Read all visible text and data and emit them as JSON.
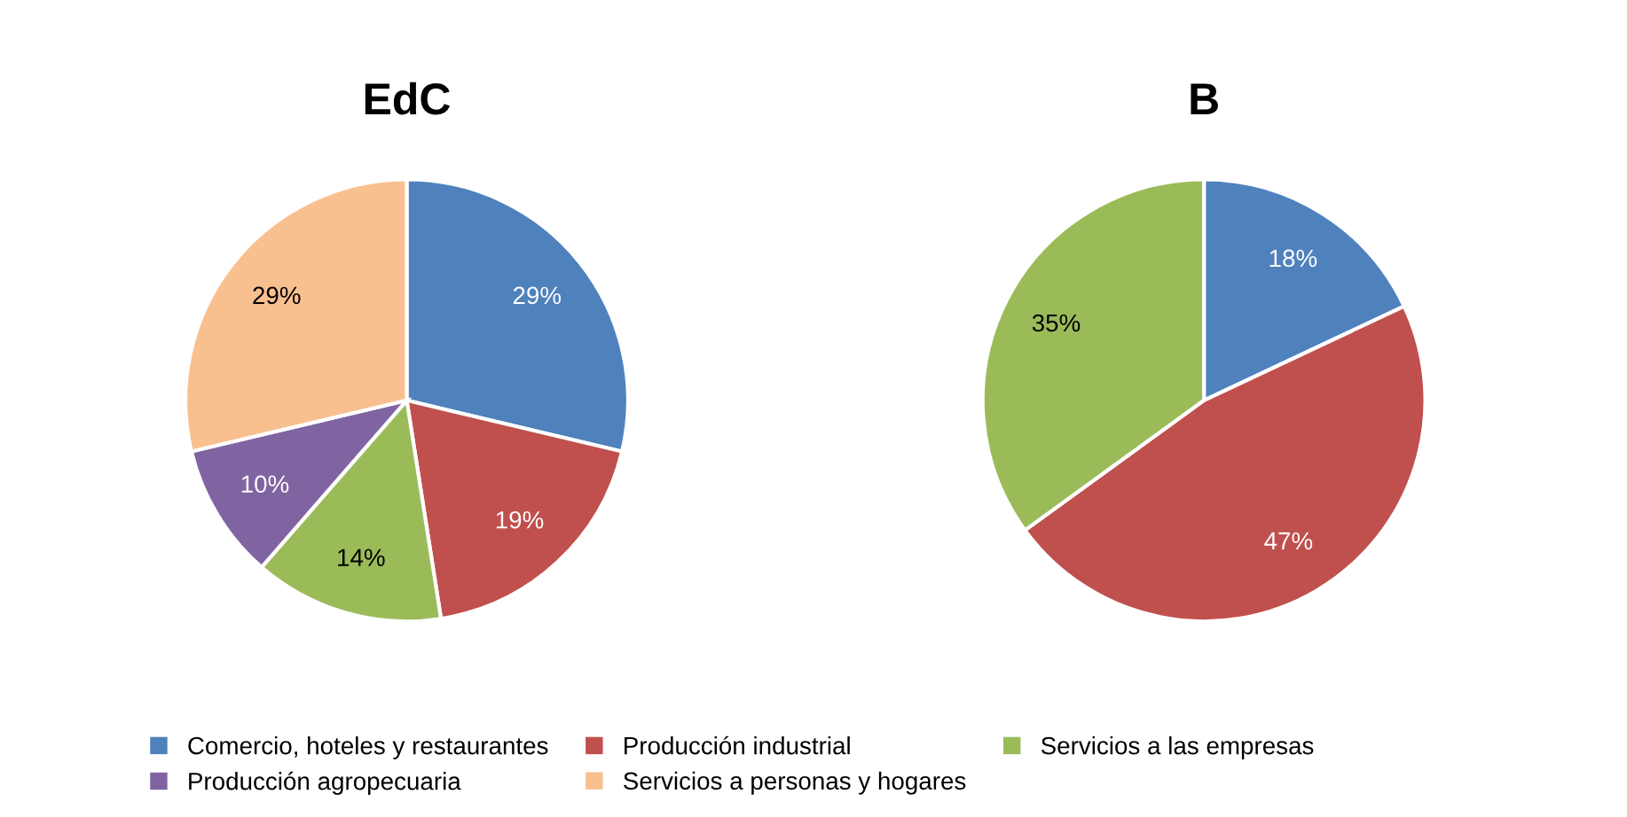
{
  "chart_data": [
    {
      "type": "pie",
      "title": "EdC",
      "categories": [
        "Comercio, hoteles y restaurantes",
        "Producción industrial",
        "Servicios a las empresas",
        "Producción agropecuaria",
        "Servicios a personas y hogares"
      ],
      "values": [
        29,
        19,
        14,
        10,
        29
      ],
      "value_labels": [
        "29%",
        "19%",
        "14%",
        "10%",
        "29%"
      ],
      "colors": [
        "#4f81bd",
        "#c0504d",
        "#9bbb59",
        "#8064a2",
        "#f9c08f"
      ],
      "legend": "bottom"
    },
    {
      "type": "pie",
      "title": "B",
      "categories": [
        null,
        null,
        null
      ],
      "values": [
        18,
        47,
        35
      ],
      "value_labels": [
        "18%",
        "47%",
        "35%"
      ],
      "colors": [
        "#4f81bd",
        "#c0504d",
        "#9bbb59"
      ]
    }
  ]
}
